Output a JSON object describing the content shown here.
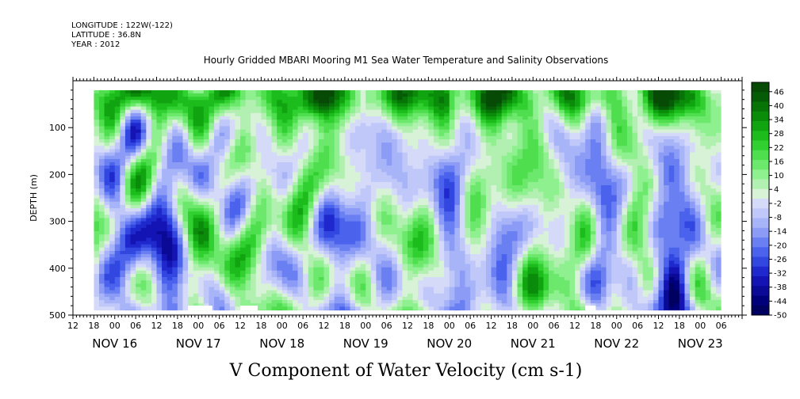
{
  "meta": {
    "longitude": "LONGITUDE : 122W(-122)",
    "latitude": "LATITUDE : 36.8N",
    "year": "YEAR : 2012"
  },
  "chart_data": {
    "type": "heatmap",
    "title": "Hourly Gridded MBARI Mooring M1 Sea Water Temperature and Salinity Observations",
    "xlabel": "V Component of Water Velocity (cm s-1)",
    "ylabel": "DEPTH (m)",
    "x_axis": {
      "unit": "hours since NOV 15 12:00",
      "range": [
        0,
        192
      ],
      "hour_ticks": [
        "12",
        "18",
        "00",
        "06",
        "12",
        "18",
        "00",
        "06",
        "12",
        "18",
        "00",
        "06",
        "12",
        "18",
        "00",
        "06",
        "12",
        "18",
        "00",
        "06",
        "12",
        "18",
        "00",
        "06",
        "12",
        "18",
        "00",
        "06",
        "12",
        "18",
        "00",
        "06"
      ],
      "day_labels": [
        "NOV 16",
        "NOV 17",
        "NOV 18",
        "NOV 19",
        "NOV 20",
        "NOV 21",
        "NOV 22",
        "NOV 23"
      ]
    },
    "y_axis": {
      "range": [
        500,
        0
      ],
      "ticks": [
        100,
        200,
        300,
        400,
        500
      ],
      "data_depth_range": [
        20,
        490
      ]
    },
    "data_time_range": [
      6,
      186
    ],
    "colorbar": {
      "levels": [
        46,
        40,
        34,
        28,
        22,
        16,
        10,
        4,
        -2,
        -8,
        -14,
        -20,
        -26,
        -32,
        -38,
        -44,
        -50
      ],
      "min": -50,
      "max": 50,
      "step": 3,
      "colors": [
        "#000060",
        "#00007a",
        "#0a0a96",
        "#1414b4",
        "#1e28cc",
        "#3246e0",
        "#4a62ec",
        "#6a80f2",
        "#8c9cf6",
        "#a8b4f8",
        "#c0c8fa",
        "#d4daf8",
        "#d8f2d8",
        "#b2f0b2",
        "#8ef08e",
        "#6ce86c",
        "#4ede4e",
        "#30d030",
        "#1cbc1c",
        "#10a410",
        "#0a8c0a",
        "#087408",
        "#065c06",
        "#064a06"
      ]
    },
    "pattern": {
      "description": "Velocity field dominated by positive (green) values near the surface (20-100 m), with several deep negative (blue) bands",
      "negative_bands_hours": [
        [
          12,
          18
        ],
        [
          26,
          30
        ],
        [
          80,
          86
        ],
        [
          108,
          112
        ],
        [
          150,
          152
        ],
        [
          168,
          178
        ]
      ],
      "surface_max_hours": [
        84,
        108
      ],
      "missing_bottom_segments_hours": [
        [
          33,
          40
        ],
        [
          48,
          53
        ],
        [
          147,
          150
        ]
      ]
    }
  }
}
